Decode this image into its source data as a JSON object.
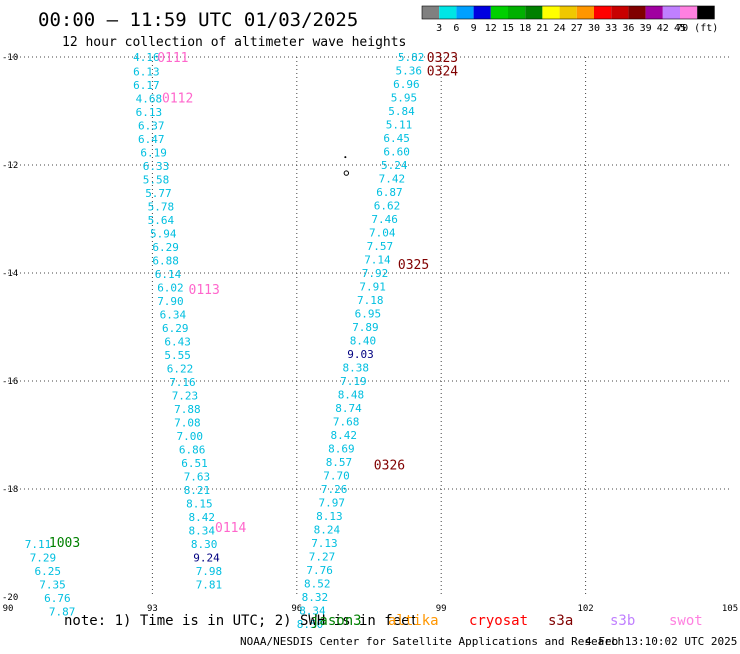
{
  "header": {
    "title": "00:00 – 11:59 UTC 01/03/2025",
    "subtitle": "12 hour collection of altimeter wave heights"
  },
  "color_scale": {
    "colors": [
      "#808080",
      "#00e5e5",
      "#00a0ff",
      "#0000e0",
      "#00d000",
      "#00b000",
      "#008000",
      "#ffff00",
      "#f0c800",
      "#ff9600",
      "#ff0000",
      "#c80000",
      "#800000",
      "#a000a0",
      "#c080ff",
      "#ff80e0",
      "#000000"
    ],
    "labels": [
      "3",
      "6",
      "9",
      "12",
      "15",
      "18",
      "21",
      "24",
      "27",
      "30",
      "33",
      "36",
      "39",
      "42",
      "45",
      "70 (ft)"
    ]
  },
  "map": {
    "lon_ticks": [
      "90",
      "93",
      "96",
      "99",
      "102",
      "105"
    ],
    "lat_ticks": [
      "-10",
      "-12",
      "-14",
      "-16",
      "-18",
      "-20"
    ],
    "lon_range": [
      90,
      105
    ],
    "lat_range": [
      -10,
      -20
    ]
  },
  "wave_colors": {
    "cyan": "#00bfe0",
    "navy": "#000080"
  },
  "tracks": [
    {
      "labels": [
        {
          "text": "0111",
          "color": "#ff66cc",
          "lon": 93.1,
          "lat": -10.0
        },
        {
          "text": "0112",
          "color": "#ff66cc",
          "lon": 93.2,
          "lat": -10.75
        },
        {
          "text": "0113",
          "color": "#ff66cc",
          "lon": 93.75,
          "lat": -14.3
        },
        {
          "text": "0114",
          "color": "#ff66cc",
          "lon": 94.3,
          "lat": -18.7
        }
      ],
      "points": [
        {
          "v": "4.16",
          "lon": 92.6,
          "lat": -10.0
        },
        {
          "v": "6.13",
          "lon": 92.6,
          "lat": -10.27
        },
        {
          "v": "6.17",
          "lon": 92.6,
          "lat": -10.52
        },
        {
          "v": "4.68",
          "lon": 92.65,
          "lat": -10.77
        },
        {
          "v": "6.13",
          "lon": 92.65,
          "lat": -11.02
        },
        {
          "v": "6.37",
          "lon": 92.7,
          "lat": -11.27
        },
        {
          "v": "6.47",
          "lon": 92.7,
          "lat": -11.52
        },
        {
          "v": "6.19",
          "lon": 92.75,
          "lat": -11.77
        },
        {
          "v": "6.33",
          "lon": 92.8,
          "lat": -12.02
        },
        {
          "v": "5.58",
          "lon": 92.8,
          "lat": -12.27
        },
        {
          "v": "5.77",
          "lon": 92.85,
          "lat": -12.52
        },
        {
          "v": "5.78",
          "lon": 92.9,
          "lat": -12.77
        },
        {
          "v": "5.64",
          "lon": 92.9,
          "lat": -13.02
        },
        {
          "v": "5.94",
          "lon": 92.95,
          "lat": -13.27
        },
        {
          "v": "6.29",
          "lon": 93.0,
          "lat": -13.52
        },
        {
          "v": "6.88",
          "lon": 93.0,
          "lat": -13.77
        },
        {
          "v": "6.14",
          "lon": 93.05,
          "lat": -14.02
        },
        {
          "v": "6.02",
          "lon": 93.1,
          "lat": -14.27
        },
        {
          "v": "7.90",
          "lon": 93.1,
          "lat": -14.52
        },
        {
          "v": "6.34",
          "lon": 93.15,
          "lat": -14.77
        },
        {
          "v": "6.29",
          "lon": 93.2,
          "lat": -15.02
        },
        {
          "v": "6.43",
          "lon": 93.25,
          "lat": -15.27
        },
        {
          "v": "5.55",
          "lon": 93.25,
          "lat": -15.52
        },
        {
          "v": "6.22",
          "lon": 93.3,
          "lat": -15.77
        },
        {
          "v": "7.16",
          "lon": 93.35,
          "lat": -16.02
        },
        {
          "v": "7.23",
          "lon": 93.4,
          "lat": -16.27
        },
        {
          "v": "7.88",
          "lon": 93.45,
          "lat": -16.52
        },
        {
          "v": "7.08",
          "lon": 93.45,
          "lat": -16.77
        },
        {
          "v": "7.00",
          "lon": 93.5,
          "lat": -17.02
        },
        {
          "v": "6.86",
          "lon": 93.55,
          "lat": -17.27
        },
        {
          "v": "6.51",
          "lon": 93.6,
          "lat": -17.52
        },
        {
          "v": "7.63",
          "lon": 93.65,
          "lat": -17.77
        },
        {
          "v": "8.21",
          "lon": 93.65,
          "lat": -18.02
        },
        {
          "v": "8.15",
          "lon": 93.7,
          "lat": -18.27
        },
        {
          "v": "8.42",
          "lon": 93.75,
          "lat": -18.52
        },
        {
          "v": "8.34",
          "lon": 93.75,
          "lat": -18.77
        },
        {
          "v": "8.30",
          "lon": 93.8,
          "lat": -19.02
        },
        {
          "v": "9.24",
          "lon": 93.85,
          "lat": -19.27,
          "c": "navy"
        },
        {
          "v": "7.98",
          "lon": 93.9,
          "lat": -19.52
        },
        {
          "v": "7.81",
          "lon": 93.9,
          "lat": -19.77
        }
      ]
    },
    {
      "labels": [
        {
          "text": "0323",
          "color": "#800000",
          "lon": 98.7,
          "lat": -10.0
        },
        {
          "text": "0324",
          "color": "#800000",
          "lon": 98.7,
          "lat": -10.25
        },
        {
          "text": "0325",
          "color": "#800000",
          "lon": 98.1,
          "lat": -13.83
        },
        {
          "text": "0326",
          "color": "#800000",
          "lon": 97.6,
          "lat": -17.55
        }
      ],
      "points": [
        {
          "v": "5.82",
          "lon": 98.1,
          "lat": -10.0
        },
        {
          "v": "5.36",
          "lon": 98.05,
          "lat": -10.25
        },
        {
          "v": "6.96",
          "lon": 98.0,
          "lat": -10.5
        },
        {
          "v": "5.95",
          "lon": 97.95,
          "lat": -10.75
        },
        {
          "v": "5.84",
          "lon": 97.9,
          "lat": -11.0
        },
        {
          "v": "5.11",
          "lon": 97.85,
          "lat": -11.25
        },
        {
          "v": "6.45",
          "lon": 97.8,
          "lat": -11.5
        },
        {
          "v": "6.60",
          "lon": 97.8,
          "lat": -11.75
        },
        {
          "v": "5.24",
          "lon": 97.75,
          "lat": -12.0
        },
        {
          "v": "7.42",
          "lon": 97.7,
          "lat": -12.25
        },
        {
          "v": "6.87",
          "lon": 97.65,
          "lat": -12.5
        },
        {
          "v": "6.62",
          "lon": 97.6,
          "lat": -12.75
        },
        {
          "v": "7.46",
          "lon": 97.55,
          "lat": -13.0
        },
        {
          "v": "7.04",
          "lon": 97.5,
          "lat": -13.25
        },
        {
          "v": "7.57",
          "lon": 97.45,
          "lat": -13.5
        },
        {
          "v": "7.14",
          "lon": 97.4,
          "lat": -13.75
        },
        {
          "v": "7.92",
          "lon": 97.35,
          "lat": -14.0
        },
        {
          "v": "7.91",
          "lon": 97.3,
          "lat": -14.25
        },
        {
          "v": "7.18",
          "lon": 97.25,
          "lat": -14.5
        },
        {
          "v": "6.95",
          "lon": 97.2,
          "lat": -14.75
        },
        {
          "v": "7.89",
          "lon": 97.15,
          "lat": -15.0
        },
        {
          "v": "8.40",
          "lon": 97.1,
          "lat": -15.25
        },
        {
          "v": "9.03",
          "lon": 97.05,
          "lat": -15.5,
          "c": "navy"
        },
        {
          "v": "8.38",
          "lon": 96.95,
          "lat": -15.75
        },
        {
          "v": "7.19",
          "lon": 96.9,
          "lat": -16.0
        },
        {
          "v": "8.48",
          "lon": 96.85,
          "lat": -16.25
        },
        {
          "v": "8.74",
          "lon": 96.8,
          "lat": -16.5
        },
        {
          "v": "7.68",
          "lon": 96.75,
          "lat": -16.75
        },
        {
          "v": "8.42",
          "lon": 96.7,
          "lat": -17.0
        },
        {
          "v": "8.69",
          "lon": 96.65,
          "lat": -17.25
        },
        {
          "v": "8.57",
          "lon": 96.6,
          "lat": -17.5
        },
        {
          "v": "7.70",
          "lon": 96.55,
          "lat": -17.75
        },
        {
          "v": "7.26",
          "lon": 96.5,
          "lat": -18.0
        },
        {
          "v": "7.97",
          "lon": 96.45,
          "lat": -18.25
        },
        {
          "v": "8.13",
          "lon": 96.4,
          "lat": -18.5
        },
        {
          "v": "8.24",
          "lon": 96.35,
          "lat": -18.75
        },
        {
          "v": "7.13",
          "lon": 96.3,
          "lat": -19.0
        },
        {
          "v": "7.27",
          "lon": 96.25,
          "lat": -19.25
        },
        {
          "v": "7.76",
          "lon": 96.2,
          "lat": -19.5
        },
        {
          "v": "8.52",
          "lon": 96.15,
          "lat": -19.75
        }
      ]
    },
    {
      "labels": [
        {
          "text": "1003",
          "color": "#008000",
          "lon": 90.85,
          "lat": -18.98
        }
      ],
      "points": [
        {
          "v": "7.11",
          "lon": 90.35,
          "lat": -19.02
        },
        {
          "v": "7.29",
          "lon": 90.45,
          "lat": -19.27
        },
        {
          "v": "6.25",
          "lon": 90.55,
          "lat": -19.52
        },
        {
          "v": "7.35",
          "lon": 90.65,
          "lat": -19.77
        },
        {
          "v": "6.76",
          "lon": 90.75,
          "lat": -20.02
        },
        {
          "v": "7.87",
          "lon": 90.85,
          "lat": -20.27
        }
      ]
    }
  ],
  "extra_points": [
    {
      "v": "8.32",
      "lon": 96.1,
      "lat": -20.0
    },
    {
      "v": "8.34",
      "lon": 96.05,
      "lat": -20.25
    },
    {
      "v": "8.50",
      "lon": 96.0,
      "lat": -20.5
    }
  ],
  "island_marker": {
    "lon": 97.05,
    "lat": -12.15
  },
  "footer": {
    "note": "note: 1) Time is in UTC; 2) SWH is in feet",
    "satellites": [
      {
        "name": "jason3",
        "color": "#008000"
      },
      {
        "name": "altika",
        "color": "#ff9600"
      },
      {
        "name": "cryosat",
        "color": "#ff0000"
      },
      {
        "name": "s3a",
        "color": "#800000"
      },
      {
        "name": "s3b",
        "color": "#c080ff"
      },
      {
        "name": "swot",
        "color": "#ff80e0"
      }
    ],
    "credit": "NOAA/NESDIS Center for Satellite Applications and Research",
    "timestamp": "4 Feb 13:10:02 UTC 2025"
  }
}
